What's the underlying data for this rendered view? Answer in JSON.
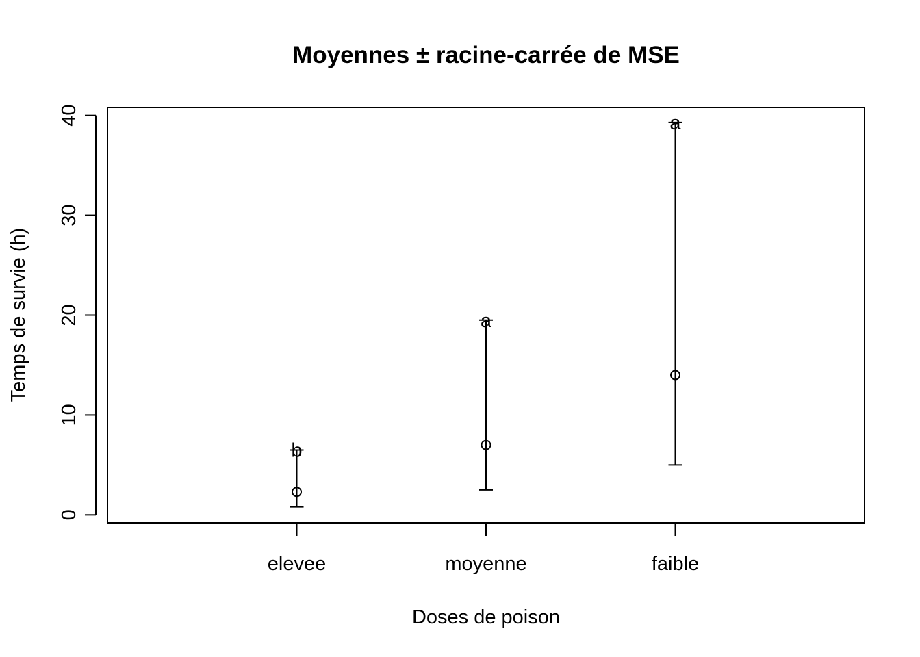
{
  "chart_data": {
    "type": "scatter",
    "title": "Moyennes ± racine-carrée de MSE",
    "xlabel": "Doses de poison",
    "ylabel": "Temps de survie (h)",
    "categories": [
      "elevee",
      "moyenne",
      "faible"
    ],
    "means": [
      2.3,
      7.0,
      14.0
    ],
    "lower": [
      0.8,
      2.5,
      5.0
    ],
    "upper": [
      6.5,
      19.5,
      39.3
    ],
    "group_letters": [
      "b",
      "a",
      "a"
    ],
    "yticks": [
      0,
      10,
      20,
      30,
      40
    ],
    "ylim": [
      -0.8,
      40.8
    ],
    "xlim": [
      0,
      4
    ],
    "grid": false,
    "legend": "none"
  }
}
